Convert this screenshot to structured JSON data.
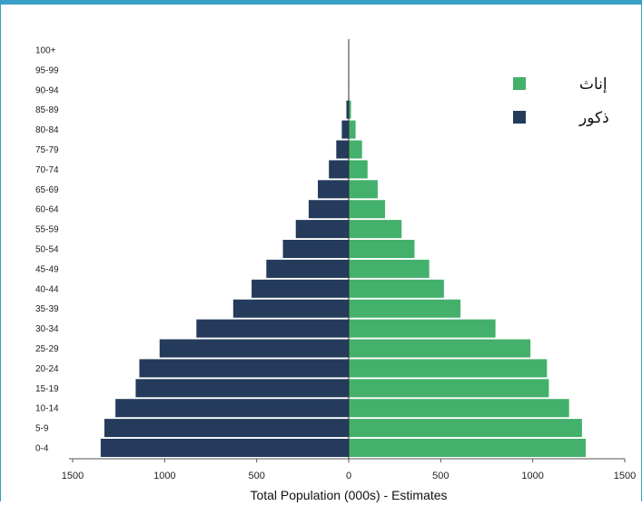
{
  "colors": {
    "male": "#243b5c",
    "female": "#43b06c",
    "frame": "#3a9fc6"
  },
  "chart_data": {
    "type": "bar",
    "orientation": "horizontal-pyramid",
    "categories": [
      "0-4",
      "5-9",
      "10-14",
      "15-19",
      "20-24",
      "25-29",
      "30-34",
      "35-39",
      "40-44",
      "45-49",
      "50-54",
      "55-59",
      "60-64",
      "65-69",
      "70-74",
      "75-79",
      "80-84",
      "85-89",
      "90-94",
      "95-99",
      "100+"
    ],
    "series": [
      {
        "name": "ذكور",
        "values": [
          1350,
          1330,
          1270,
          1160,
          1140,
          1030,
          830,
          630,
          530,
          450,
          360,
          290,
          220,
          170,
          110,
          70,
          40,
          15,
          5,
          2,
          0
        ]
      },
      {
        "name": "إناث",
        "values": [
          1290,
          1270,
          1200,
          1090,
          1080,
          990,
          800,
          610,
          520,
          440,
          360,
          290,
          200,
          160,
          105,
          75,
          40,
          15,
          5,
          2,
          0
        ]
      }
    ],
    "xlabel": "Total Population (000s) - Estimates",
    "xlim": [
      -1500,
      1500
    ],
    "xticks": [
      "1500",
      "1000",
      "500",
      "0",
      "500",
      "1000",
      "1500"
    ],
    "legend_position": "top-right"
  }
}
